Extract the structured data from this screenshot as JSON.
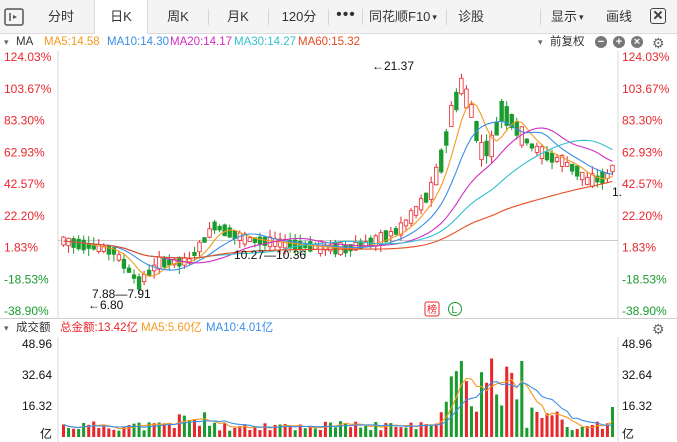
{
  "toolbar": {
    "tabs": [
      "分时",
      "日K",
      "周K",
      "月K",
      "120分"
    ],
    "active_tab": "日K",
    "more": "•••",
    "f10_label": "同花顺F10",
    "diagnose_label": "诊股",
    "display_label": "显示",
    "draw_label": "画线"
  },
  "price_legend": {
    "ma_label": "MA",
    "ma5": "MA5:14.58",
    "ma10": "MA10:14.30",
    "ma20": "MA20:14.17",
    "ma30": "MA30:14.27",
    "ma60": "MA60:15.32",
    "adjust_label": "前复权"
  },
  "volume_legend": {
    "title": "成交额",
    "total": "总金额:13.42亿",
    "ma5": "MA5:5.60亿",
    "ma10": "MA10:4.01亿"
  },
  "price_axis": {
    "left_ticks": [
      "124.03%",
      "103.67%",
      "83.30%",
      "62.93%",
      "42.57%",
      "22.20%",
      "1.83%",
      "-18.53%",
      "-38.90%"
    ],
    "right_ticks": [
      "124.03%",
      "103.67%",
      "83.30%",
      "62.93%",
      "42.57%",
      "22.20%",
      "1.83%",
      "-18.53%",
      "-38.90%"
    ]
  },
  "volume_axis": {
    "left_ticks": [
      "48.96",
      "32.64",
      "16.32"
    ],
    "right_ticks": [
      "48.96",
      "32.64",
      "16.32"
    ],
    "unit": "亿"
  },
  "annotations": {
    "high": "←21.37",
    "low": "←6.80",
    "low_range": "7.88—7.91",
    "mid_range": "10.27—10.36",
    "right_edge_label": "1.",
    "badge_hot": "榜",
    "badge_l": "L"
  },
  "colors": {
    "up": "#e8272d",
    "down": "#1a9b2e",
    "ma5": "#f39a1e",
    "ma10": "#3a8ee6",
    "ma20": "#d02ec2",
    "ma30": "#33c1cf",
    "ma60": "#e84c22",
    "active_tab_bg": "#ffffff"
  },
  "chart_data": {
    "type": "candlestick",
    "title": "",
    "y_axis": "percent change",
    "ylim": [
      -38.9,
      124.03
    ],
    "volume_ylim": [
      0,
      48.96
    ],
    "grid": true
  }
}
